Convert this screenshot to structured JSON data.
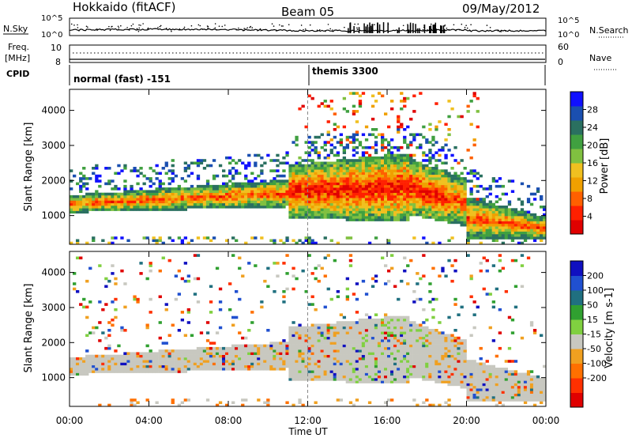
{
  "header": {
    "station": "Hokkaido (fitACF)",
    "beam": "Beam 05",
    "date": "09/May/2012"
  },
  "top_panels": {
    "nsky_label": "N.Sky",
    "nsky_ticks": [
      "10^5",
      "10^0"
    ],
    "nsearch_label": "N.Search",
    "nsearch_ticks": [
      "10^5",
      "10^0"
    ],
    "freq_label_1": "Freq.",
    "freq_label_2": "[MHz]",
    "freq_ticks": [
      "10",
      "8"
    ],
    "nave_label": "Nave",
    "nave_ticks": [
      "60",
      "0"
    ],
    "cpid_label": "CPID",
    "cpid_left": "normal (fast) -151",
    "cpid_right": "themis 3300"
  },
  "chart_data": [
    {
      "type": "heatmap",
      "name": "power",
      "ylabel": "Slant Range [km]",
      "yticks": [
        1000,
        2000,
        3000,
        4000
      ],
      "ylim": [
        180,
        4600
      ],
      "xlim_hours": [
        0,
        24
      ],
      "colorbar_label": "Power [dB]",
      "colorbar_ticks": [
        4,
        8,
        12,
        16,
        20,
        24,
        28
      ],
      "colorbar_colors": [
        "#1010ff",
        "#1a4fb0",
        "#2a7060",
        "#40a040",
        "#80c040",
        "#f0c020",
        "#f0a000",
        "#ff6000",
        "#ff2000",
        "#e00000"
      ]
    },
    {
      "type": "heatmap",
      "name": "velocity",
      "ylabel": "Slant Range [km]",
      "yticks": [
        1000,
        2000,
        3000,
        4000
      ],
      "ylim": [
        180,
        4600
      ],
      "xlim_hours": [
        0,
        24
      ],
      "xlabel": "Time UT",
      "xticks": [
        "00:00",
        "04:00",
        "08:00",
        "12:00",
        "16:00",
        "20:00",
        "00:00"
      ],
      "colorbar_label": "Velocity [m s-1]",
      "colorbar_ticks": [
        200,
        100,
        50,
        15,
        -15,
        -50,
        -100,
        -200
      ],
      "colorbar_colors": [
        "#1010c0",
        "#2050d0",
        "#207080",
        "#30a030",
        "#80d040",
        "#c8c8c0",
        "#f0a020",
        "#ff7000",
        "#ff3000",
        "#e00000"
      ]
    }
  ],
  "colors": {
    "gray_scatter": "#c8c8c0",
    "ground_scatter_note": "gray"
  }
}
